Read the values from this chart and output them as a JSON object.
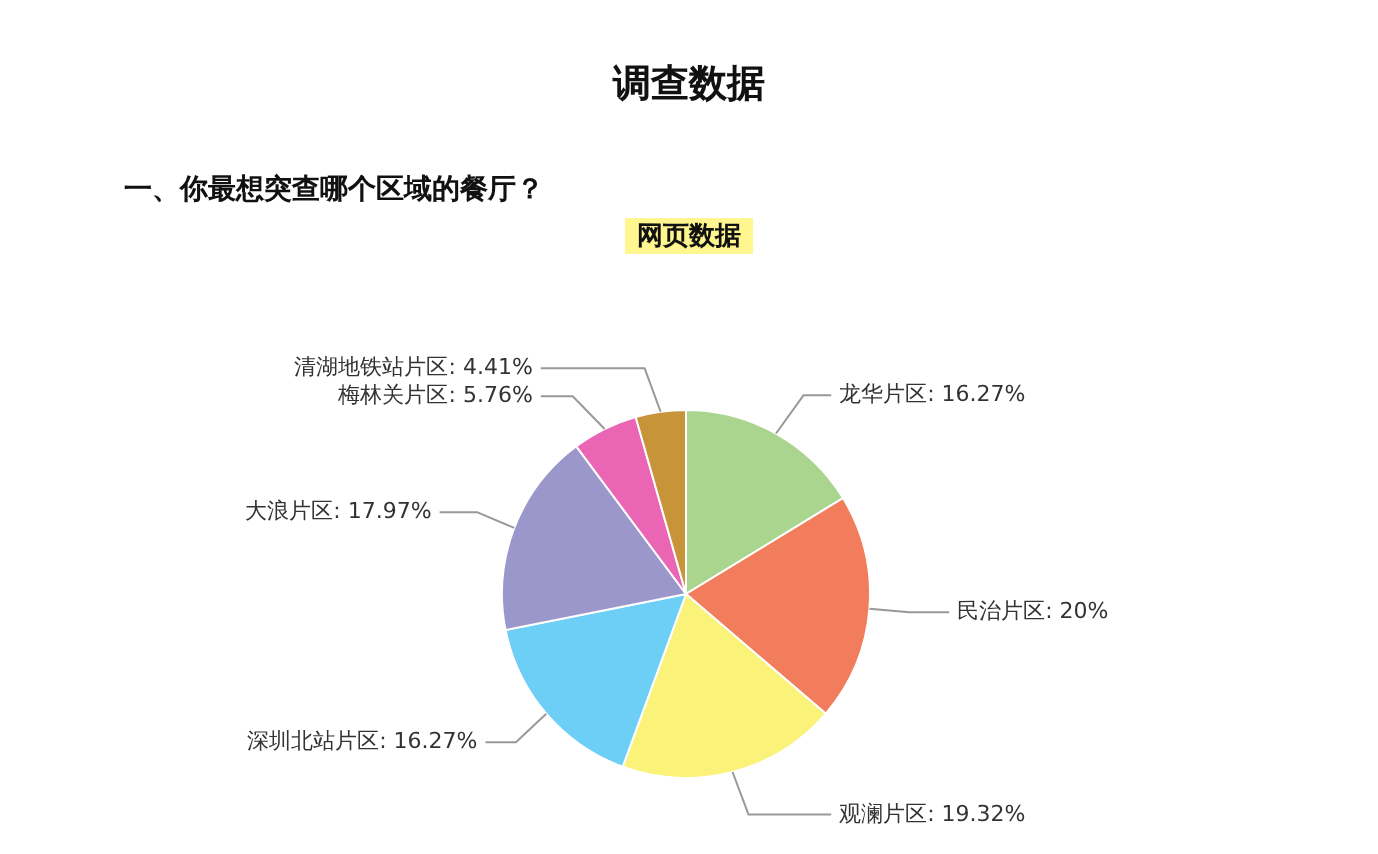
{
  "chart_data": {
    "type": "pie",
    "title": "调查数据",
    "subtitle": "一、你最想突查哪个区域的餐厅？",
    "annotations": [
      "网页数据"
    ],
    "categories": [
      "龙华片区",
      "民治片区",
      "观澜片区",
      "深圳北站片区",
      "大浪片区",
      "梅林关片区",
      "清湖地铁站片区"
    ],
    "values": [
      16.27,
      20,
      19.32,
      16.27,
      17.97,
      5.76,
      4.41
    ],
    "value_labels": [
      "16.27%",
      "20%",
      "19.32%",
      "16.27%",
      "17.97%",
      "5.76%",
      "4.41%"
    ],
    "colors": [
      "#a9d58e",
      "#f27d5c",
      "#fbf27a",
      "#6dcff6",
      "#9c97cb",
      "#ea66b5",
      "#c8943a"
    ]
  }
}
